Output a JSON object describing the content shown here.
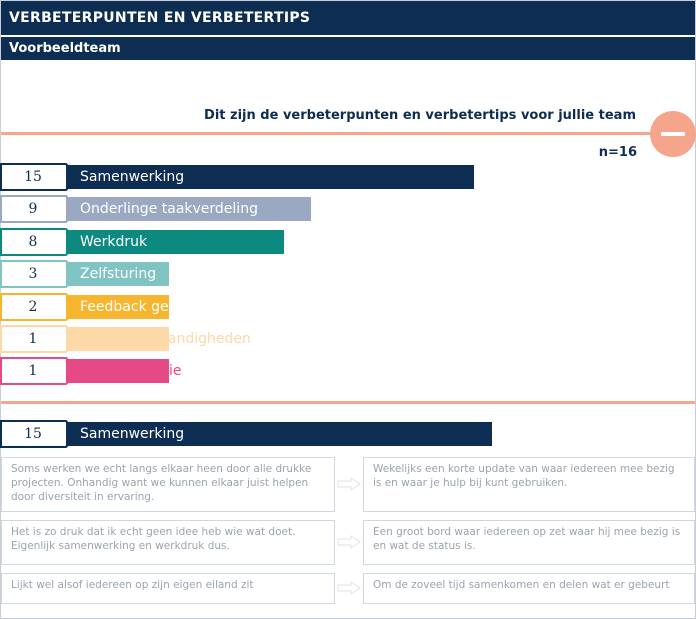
{
  "header": {
    "title": "VERBETERPUNTEN EN VERBETERTIPS",
    "subtitle": "Voorbeeldteam"
  },
  "section": {
    "title": "Dit zijn de verbeterpunten en verbetertips voor jullie team",
    "n_label": "n=16",
    "collapse_icon": "minus-icon"
  },
  "chart_data": {
    "type": "bar",
    "orientation": "horizontal",
    "categories": [
      "Samenwerking",
      "Onderlinge taakverdeling",
      "Werkdruk",
      "Zelfsturing",
      "Feedback geven",
      "Arbeidsomstandigheden",
      "Communicatie"
    ],
    "values": [
      15,
      9,
      8,
      3,
      2,
      1,
      1
    ],
    "colors": [
      "#0e2d52",
      "#9aa8c1",
      "#0d8a80",
      "#7fc4c2",
      "#f7b52e",
      "#fcd9a6",
      "#e54a87"
    ],
    "label_colors": [
      "#ffffff",
      "#ffffff",
      "#ffffff",
      "#ffffff",
      "#ffffff",
      "#fcd9a6",
      "#e54a87"
    ]
  },
  "detail": {
    "count": "15",
    "label": "Samenwerking",
    "color": "#0e2d52",
    "rows": [
      {
        "problem": "Soms werken we echt langs elkaar heen door alle drukke projecten. Onhandig want we kunnen elkaar juist helpen door diversiteit in ervaring.",
        "tip": "Wekelijks een korte update van waar iedereen mee bezig is en waar je hulp bij kunt gebruiken."
      },
      {
        "problem": "Het is zo druk dat ik echt geen idee heb wie wat doet. Eigenlijk samenwerking en werkdruk dus.",
        "tip": "Een groot bord waar iedereen op zet waar hij mee bezig is en wat de status is."
      },
      {
        "problem": "Lijkt wel alsof iedereen op zijn eigen eiland zit",
        "tip": "Om de zoveel tijd samenkomen en delen wat er gebeurt"
      }
    ]
  }
}
